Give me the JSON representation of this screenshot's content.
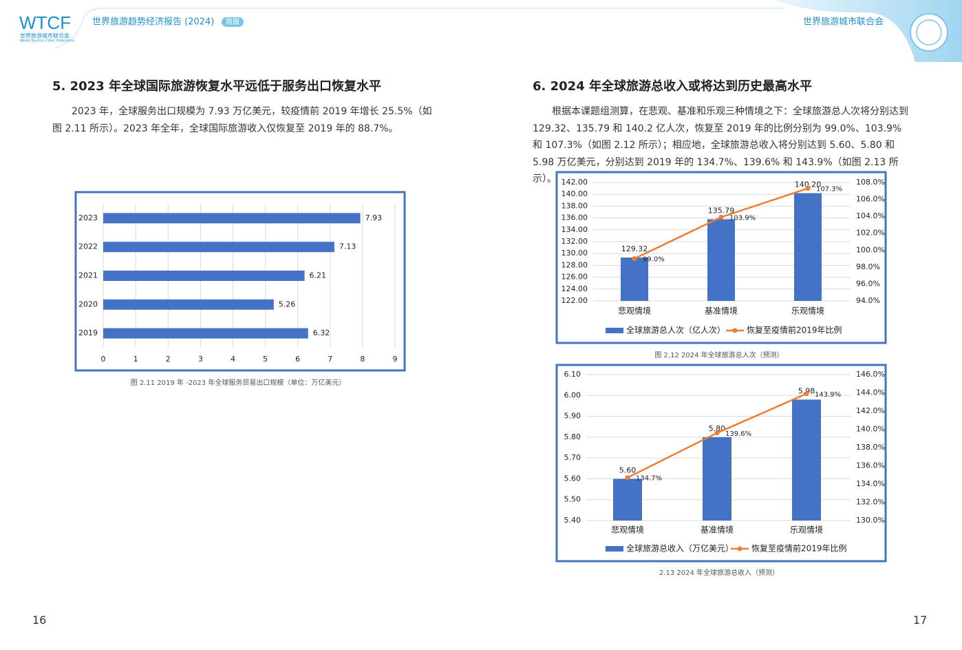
{
  "header": {
    "logo": "WTCF",
    "logo_cn": "世界旅游城市联合会",
    "logo_en": "World Tourism Cities Federation",
    "report_title": "世界旅游趋势经济报告 (2024)",
    "edition": "简版",
    "org": "世界旅游城市联合会"
  },
  "left": {
    "title": "5. 2023 年全球国际旅游恢复水平远低于服务出口恢复水平",
    "paragraph": "2023 年，全球服务出口规模为 7.93 万亿美元，较疫情前 2019 年增长 25.5%（如图 2.11 所示）。2023 年全年，全球国际旅游收入仅恢复至 2019 年的 88.7%。",
    "page_number": "16"
  },
  "right": {
    "title": "6. 2024 年全球旅游总收入或将达到历史最高水平",
    "paragraph": "根据本课题组测算，在悲观、基准和乐观三种情境之下：全球旅游总人次将分别达到 129.32、135.79 和 140.2 亿人次，恢复至 2019 年的比例分别为 99.0%、103.9% 和 107.3%（如图 2.12 所示）；相应地，全球旅游总收入将分别达到 5.60、5.80 和 5.98 万亿美元，分别达到 2019 年的 134.7%、139.6% 和 143.9%（如图 2.13 所示）。",
    "page_number": "17"
  },
  "chart_data": [
    {
      "type": "hbar",
      "caption": "图 2.11 2019 年 -2023 年全球服务贸易出口规模（单位：万亿美元）",
      "categories": [
        "2023",
        "2022",
        "2021",
        "2020",
        "2019"
      ],
      "values": [
        7.93,
        7.13,
        6.21,
        5.26,
        6.32
      ],
      "color": "#4472c4",
      "xlim": [
        0,
        9
      ],
      "xticks": [
        0,
        1,
        2,
        3,
        4,
        5,
        6,
        7,
        8,
        9
      ],
      "grid": true
    },
    {
      "type": "combo",
      "caption": "图 2.12 2024 年全球旅游总人次（预测）",
      "categories": [
        "悲观情境",
        "基准情境",
        "乐观情境"
      ],
      "series": [
        {
          "name": "全球旅游总人次（亿人次）",
          "color": "#4472c4",
          "values": [
            129.32,
            135.79,
            140.2
          ],
          "value_labels": [
            "129.32",
            "135.79",
            "140.20"
          ]
        },
        {
          "name": "恢复至疫情前2019年比例",
          "color": "#ed7d31",
          "axis": "y2",
          "values": [
            99.0,
            103.9,
            107.3
          ],
          "value_labels": [
            "99.0%",
            "103.9%",
            "107.3%"
          ]
        }
      ],
      "ylim": [
        122,
        142
      ],
      "yticks": [
        {
          "value": 122,
          "label": "122.00"
        },
        {
          "value": 124,
          "label": "124.00"
        },
        {
          "value": 126,
          "label": "126.00"
        },
        {
          "value": 128,
          "label": "128.00"
        },
        {
          "value": 130,
          "label": "130.00"
        },
        {
          "value": 132,
          "label": "132.00"
        },
        {
          "value": 134,
          "label": "134.00"
        },
        {
          "value": 136,
          "label": "136.00"
        },
        {
          "value": 138,
          "label": "138.00"
        },
        {
          "value": 140,
          "label": "140.00"
        },
        {
          "value": 142,
          "label": "142.00"
        }
      ],
      "y2lim": [
        94,
        108
      ],
      "y2ticks": [
        {
          "value": 94,
          "label": "94.0%"
        },
        {
          "value": 96,
          "label": "96.0%"
        },
        {
          "value": 98,
          "label": "98.0%"
        },
        {
          "value": 100,
          "label": "100.0%"
        },
        {
          "value": 102,
          "label": "102.0%"
        },
        {
          "value": 104,
          "label": "104.0%"
        },
        {
          "value": 106,
          "label": "106.0%"
        },
        {
          "value": 108,
          "label": "108.0%"
        }
      ],
      "grid": true
    },
    {
      "type": "combo",
      "caption": "2.13 2024 年全球旅游总收入（预测）",
      "categories": [
        "悲观情境",
        "基准情境",
        "乐观情境"
      ],
      "series": [
        {
          "name": "全球旅游总收入（万亿美元）",
          "color": "#4472c4",
          "values": [
            5.6,
            5.8,
            5.98
          ],
          "value_labels": [
            "5.60",
            "5.80",
            "5.98"
          ]
        },
        {
          "name": "恢复至疫情前2019年比例",
          "color": "#ed7d31",
          "axis": "y2",
          "values": [
            134.7,
            139.6,
            143.9
          ],
          "value_labels": [
            "134.7%",
            "139.6%",
            "143.9%"
          ]
        }
      ],
      "ylim": [
        5.4,
        6.1
      ],
      "yticks": [
        {
          "value": 5.4,
          "label": "5.40"
        },
        {
          "value": 5.5,
          "label": "5.50"
        },
        {
          "value": 5.6,
          "label": "5.60"
        },
        {
          "value": 5.7,
          "label": "5.70"
        },
        {
          "value": 5.8,
          "label": "5.80"
        },
        {
          "value": 5.9,
          "label": "5.90"
        },
        {
          "value": 6.0,
          "label": "6.00"
        },
        {
          "value": 6.1,
          "label": "6.10"
        }
      ],
      "y2lim": [
        130,
        146
      ],
      "y2ticks": [
        {
          "value": 130,
          "label": "130.0%"
        },
        {
          "value": 132,
          "label": "132.0%"
        },
        {
          "value": 134,
          "label": "134.0%"
        },
        {
          "value": 136,
          "label": "136.0%"
        },
        {
          "value": 138,
          "label": "138.0%"
        },
        {
          "value": 140,
          "label": "140.0%"
        },
        {
          "value": 142,
          "label": "142.0%"
        },
        {
          "value": 144,
          "label": "144.0%"
        },
        {
          "value": 146,
          "label": "146.0%"
        }
      ],
      "grid": true
    }
  ]
}
